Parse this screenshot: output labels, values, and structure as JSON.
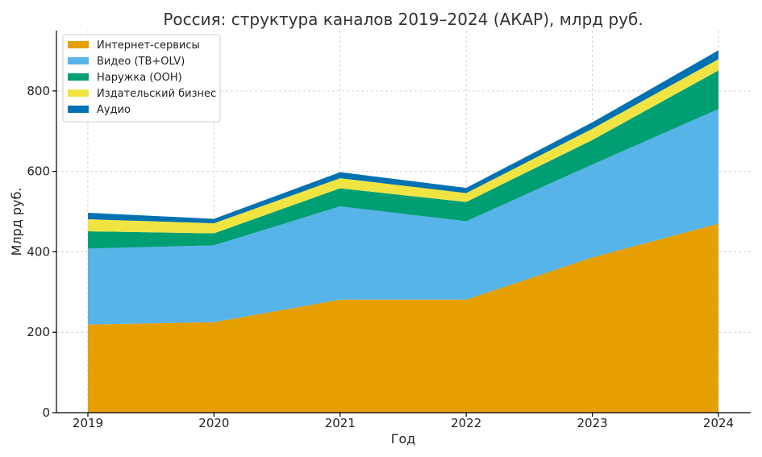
{
  "chart_data": {
    "type": "area",
    "stacked": true,
    "title": "Россия: структура каналов 2019–2024 (АКАР), млрд руб.",
    "xlabel": "Год",
    "ylabel": "Млрд руб.",
    "x": [
      "2019",
      "2020",
      "2021",
      "2022",
      "2023",
      "2024"
    ],
    "ylim": [
      0,
      950
    ],
    "yticks": [
      0,
      200,
      400,
      600,
      800
    ],
    "grid": true,
    "legend_position": "top-left",
    "series": [
      {
        "name": "Интернет-сервисы",
        "color": "#E69F00",
        "values": [
          219,
          225,
          281,
          281,
          386,
          470
        ]
      },
      {
        "name": "Видео (ТВ+OLV)",
        "color": "#56B4E9",
        "values": [
          189,
          191,
          232,
          195,
          231,
          285
        ]
      },
      {
        "name": "Наружка (ООН)",
        "color": "#009E73",
        "values": [
          43,
          30,
          45,
          48,
          61,
          96
        ]
      },
      {
        "name": "Издательский бизнес",
        "color": "#F0E442",
        "values": [
          30,
          25,
          25,
          22,
          28,
          28
        ]
      },
      {
        "name": "Аудио",
        "color": "#0072B2",
        "values": [
          16,
          11,
          15,
          13,
          16,
          22
        ]
      }
    ]
  }
}
